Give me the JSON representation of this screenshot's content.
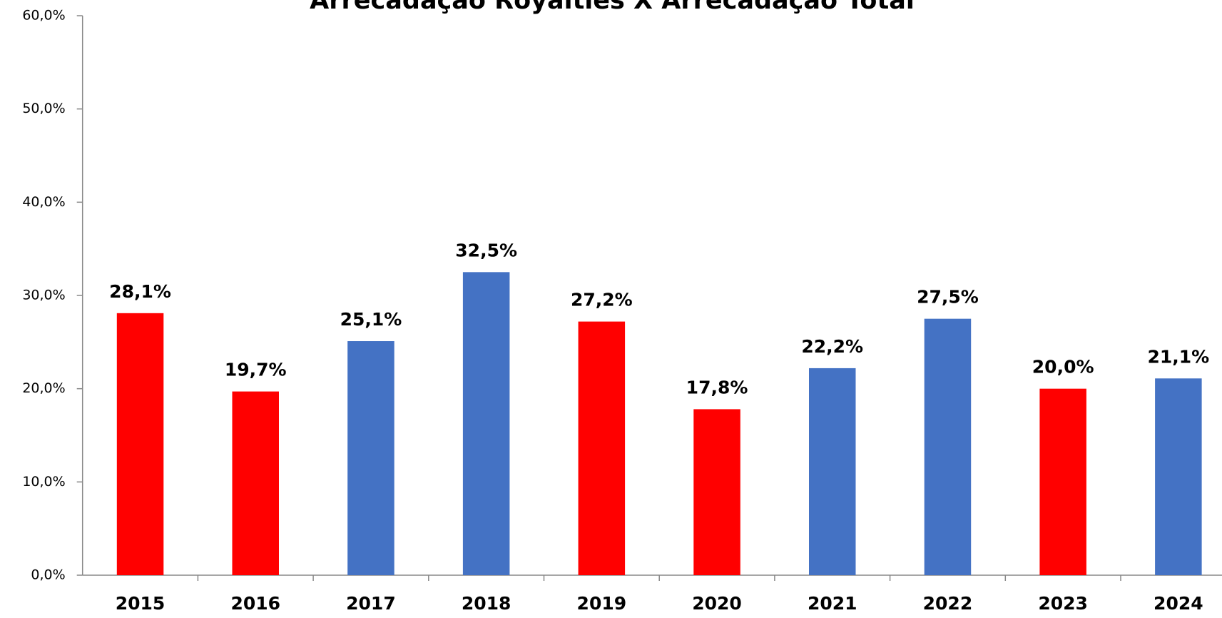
{
  "chart_data": {
    "type": "bar",
    "title": "Arrecadação Royalties X Arrecadação Total",
    "categories": [
      "2015",
      "2016",
      "2017",
      "2018",
      "2019",
      "2020",
      "2021",
      "2022",
      "2023",
      "2024"
    ],
    "values": [
      28.1,
      19.7,
      25.1,
      32.5,
      27.2,
      17.8,
      22.2,
      27.5,
      20.0,
      21.1
    ],
    "value_labels": [
      "28,1%",
      "19,7%",
      "25,1%",
      "32,5%",
      "27,2%",
      "17,8%",
      "22,2%",
      "27,5%",
      "20,0%",
      "21,1%"
    ],
    "colors": [
      "#ff0000",
      "#ff0000",
      "#4472c4",
      "#4472c4",
      "#ff0000",
      "#ff0000",
      "#4472c4",
      "#4472c4",
      "#ff0000",
      "#4472c4"
    ],
    "ylim": [
      0,
      60
    ],
    "yticks": [
      {
        "value": 0,
        "label": "0,0%"
      },
      {
        "value": 10,
        "label": "10,0%"
      },
      {
        "value": 20,
        "label": "20,0%"
      },
      {
        "value": 30,
        "label": "30,0%"
      },
      {
        "value": 40,
        "label": "40,0%"
      },
      {
        "value": 50,
        "label": "50,0%"
      },
      {
        "value": 60,
        "label": "60,0%"
      }
    ],
    "grid": false
  }
}
